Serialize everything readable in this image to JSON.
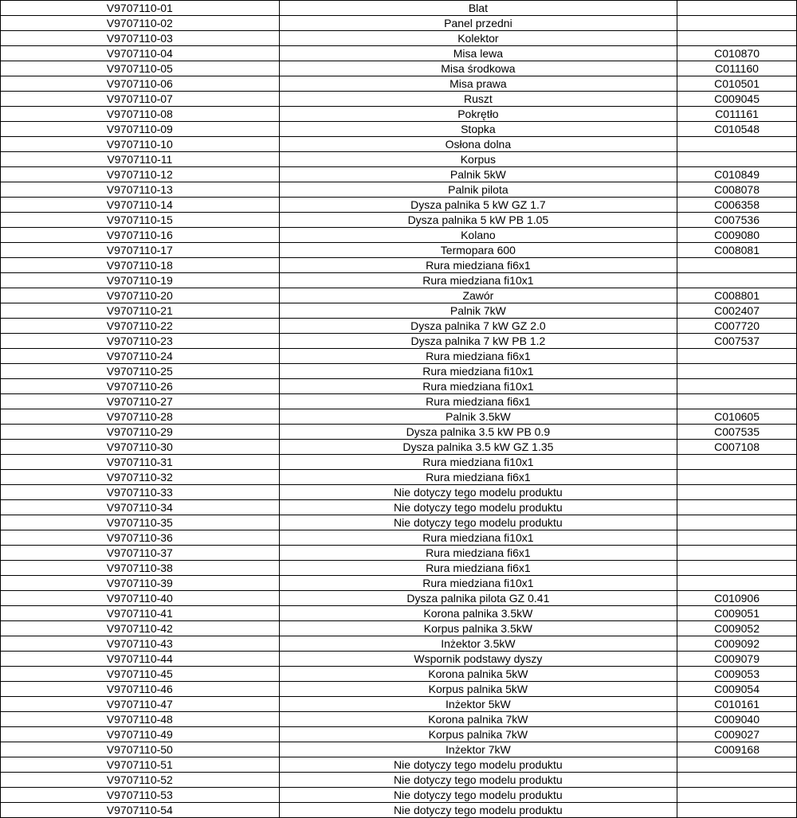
{
  "table": {
    "type": "table",
    "background_color": "#ffffff",
    "border_color": "#000000",
    "text_color": "#000000",
    "font_size": 14,
    "columns": [
      {
        "key": "code",
        "width": "35%",
        "align": "center"
      },
      {
        "key": "description",
        "width": "50%",
        "align": "center"
      },
      {
        "key": "reference",
        "width": "15%",
        "align": "center"
      }
    ],
    "rows": [
      {
        "code": "V9707110-01",
        "description": "Blat",
        "reference": ""
      },
      {
        "code": "V9707110-02",
        "description": "Panel przedni",
        "reference": ""
      },
      {
        "code": "V9707110-03",
        "description": "Kolektor",
        "reference": ""
      },
      {
        "code": "V9707110-04",
        "description": "Misa lewa",
        "reference": "C010870"
      },
      {
        "code": "V9707110-05",
        "description": "Misa środkowa",
        "reference": "C011160"
      },
      {
        "code": "V9707110-06",
        "description": "Misa prawa",
        "reference": "C010501"
      },
      {
        "code": "V9707110-07",
        "description": "Ruszt",
        "reference": "C009045"
      },
      {
        "code": "V9707110-08",
        "description": "Pokrętło",
        "reference": "C011161"
      },
      {
        "code": "V9707110-09",
        "description": "Stopka",
        "reference": "C010548"
      },
      {
        "code": "V9707110-10",
        "description": "Osłona dolna",
        "reference": ""
      },
      {
        "code": "V9707110-11",
        "description": "Korpus",
        "reference": ""
      },
      {
        "code": "V9707110-12",
        "description": "Palnik 5kW",
        "reference": "C010849"
      },
      {
        "code": "V9707110-13",
        "description": "Palnik pilota",
        "reference": "C008078"
      },
      {
        "code": "V9707110-14",
        "description": "Dysza palnika 5 kW GZ 1.7",
        "reference": "C006358"
      },
      {
        "code": "V9707110-15",
        "description": "Dysza palnika 5 kW PB 1.05",
        "reference": "C007536"
      },
      {
        "code": "V9707110-16",
        "description": "Kolano",
        "reference": "C009080"
      },
      {
        "code": "V9707110-17",
        "description": "Termopara 600",
        "reference": "C008081"
      },
      {
        "code": "V9707110-18",
        "description": "Rura miedziana fi6x1",
        "reference": ""
      },
      {
        "code": "V9707110-19",
        "description": "Rura miedziana fi10x1",
        "reference": ""
      },
      {
        "code": "V9707110-20",
        "description": "Zawór",
        "reference": "C008801"
      },
      {
        "code": "V9707110-21",
        "description": "Palnik 7kW",
        "reference": "C002407"
      },
      {
        "code": "V9707110-22",
        "description": "Dysza palnika 7 kW GZ 2.0",
        "reference": "C007720"
      },
      {
        "code": "V9707110-23",
        "description": "Dysza palnika 7 kW PB 1.2",
        "reference": "C007537"
      },
      {
        "code": "V9707110-24",
        "description": "Rura miedziana fi6x1",
        "reference": ""
      },
      {
        "code": "V9707110-25",
        "description": "Rura miedziana fi10x1",
        "reference": ""
      },
      {
        "code": "V9707110-26",
        "description": "Rura miedziana fi10x1",
        "reference": ""
      },
      {
        "code": "V9707110-27",
        "description": "Rura miedziana fi6x1",
        "reference": ""
      },
      {
        "code": "V9707110-28",
        "description": "Palnik 3.5kW",
        "reference": "C010605"
      },
      {
        "code": "V9707110-29",
        "description": "Dysza palnika 3.5 kW PB 0.9",
        "reference": "C007535"
      },
      {
        "code": "V9707110-30",
        "description": "Dysza palnika 3.5 kW GZ 1.35",
        "reference": "C007108"
      },
      {
        "code": "V9707110-31",
        "description": "Rura miedziana fi10x1",
        "reference": ""
      },
      {
        "code": "V9707110-32",
        "description": "Rura miedziana fi6x1",
        "reference": ""
      },
      {
        "code": "V9707110-33",
        "description": "Nie dotyczy tego modelu produktu",
        "reference": ""
      },
      {
        "code": "V9707110-34",
        "description": "Nie dotyczy tego modelu produktu",
        "reference": ""
      },
      {
        "code": "V9707110-35",
        "description": "Nie dotyczy tego modelu produktu",
        "reference": ""
      },
      {
        "code": "V9707110-36",
        "description": "Rura miedziana fi10x1",
        "reference": ""
      },
      {
        "code": "V9707110-37",
        "description": "Rura miedziana fi6x1",
        "reference": ""
      },
      {
        "code": "V9707110-38",
        "description": "Rura miedziana fi6x1",
        "reference": ""
      },
      {
        "code": "V9707110-39",
        "description": "Rura miedziana fi10x1",
        "reference": ""
      },
      {
        "code": "V9707110-40",
        "description": "Dysza palnika pilota GZ 0.41",
        "reference": "C010906"
      },
      {
        "code": "V9707110-41",
        "description": "Korona palnika 3.5kW",
        "reference": "C009051"
      },
      {
        "code": "V9707110-42",
        "description": "Korpus palnika 3.5kW",
        "reference": "C009052"
      },
      {
        "code": "V9707110-43",
        "description": "Inżektor 3.5kW",
        "reference": "C009092"
      },
      {
        "code": "V9707110-44",
        "description": "Wspornik podstawy dyszy",
        "reference": "C009079"
      },
      {
        "code": "V9707110-45",
        "description": "Korona palnika 5kW",
        "reference": "C009053"
      },
      {
        "code": "V9707110-46",
        "description": "Korpus palnika 5kW",
        "reference": "C009054"
      },
      {
        "code": "V9707110-47",
        "description": "Inżektor 5kW",
        "reference": "C010161"
      },
      {
        "code": "V9707110-48",
        "description": "Korona palnika 7kW",
        "reference": "C009040"
      },
      {
        "code": "V9707110-49",
        "description": "Korpus palnika 7kW",
        "reference": "C009027"
      },
      {
        "code": "V9707110-50",
        "description": "Inżektor 7kW",
        "reference": "C009168"
      },
      {
        "code": "V9707110-51",
        "description": "Nie dotyczy tego modelu produktu",
        "reference": ""
      },
      {
        "code": "V9707110-52",
        "description": "Nie dotyczy tego modelu produktu",
        "reference": ""
      },
      {
        "code": "V9707110-53",
        "description": "Nie dotyczy tego modelu produktu",
        "reference": ""
      },
      {
        "code": "V9707110-54",
        "description": "Nie dotyczy tego modelu produktu",
        "reference": ""
      }
    ]
  }
}
